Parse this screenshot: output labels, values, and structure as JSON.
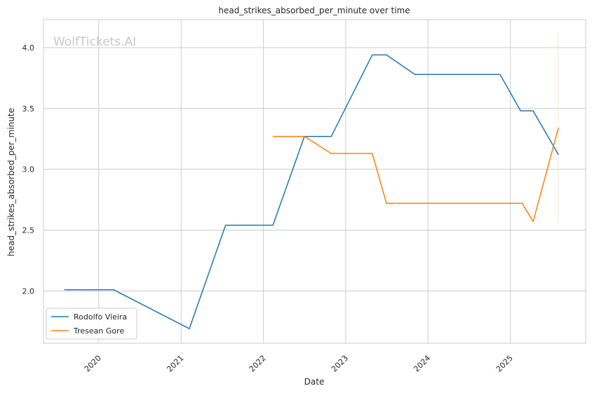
{
  "chart_data": {
    "type": "line",
    "title": "head_strikes_absorbed_per_minute over time",
    "xlabel": "Date",
    "ylabel": "head_strikes_absorbed_per_minute",
    "watermark": "WolfTickets.AI",
    "x_ticks": [
      "2020",
      "2021",
      "2022",
      "2023",
      "2024",
      "2025"
    ],
    "y_ticks": [
      "2.0",
      "2.5",
      "3.0",
      "3.5",
      "4.0"
    ],
    "ylim": [
      1.57,
      4.23
    ],
    "xlim": [
      "2019-05-01",
      "2025-12-01"
    ],
    "grid": true,
    "legend_position": "lower-left",
    "series": [
      {
        "name": "Rodolfo Vieira",
        "color": "#1f77b4",
        "points": [
          [
            "2019-08-01",
            2.01
          ],
          [
            "2020-03-07",
            2.01
          ],
          [
            "2021-02-06",
            1.69
          ],
          [
            "2021-07-17",
            2.54
          ],
          [
            "2022-02-12",
            2.54
          ],
          [
            "2022-07-02",
            3.27
          ],
          [
            "2022-10-29",
            3.27
          ],
          [
            "2023-04-29",
            3.94
          ],
          [
            "2023-07-01",
            3.94
          ],
          [
            "2023-11-04",
            3.78
          ],
          [
            "2024-11-16",
            3.78
          ],
          [
            "2025-02-15",
            3.48
          ],
          [
            "2025-04-12",
            3.48
          ],
          [
            "2025-08-02",
            3.12
          ]
        ]
      },
      {
        "name": "Tresean Gore",
        "color": "#ff7f0e",
        "points": [
          [
            "2022-02-12",
            3.27
          ],
          [
            "2022-07-02",
            3.27
          ],
          [
            "2022-10-29",
            3.13
          ],
          [
            "2023-04-29",
            3.13
          ],
          [
            "2023-07-01",
            2.72
          ],
          [
            "2025-02-22",
            2.72
          ],
          [
            "2025-04-12",
            2.57
          ],
          [
            "2025-08-02",
            3.34
          ]
        ]
      }
    ],
    "annotations": [
      {
        "type": "vertical-span",
        "x": "2025-08-02",
        "y_range": [
          2.57,
          4.11
        ],
        "color": "#fbe3cf"
      }
    ]
  }
}
